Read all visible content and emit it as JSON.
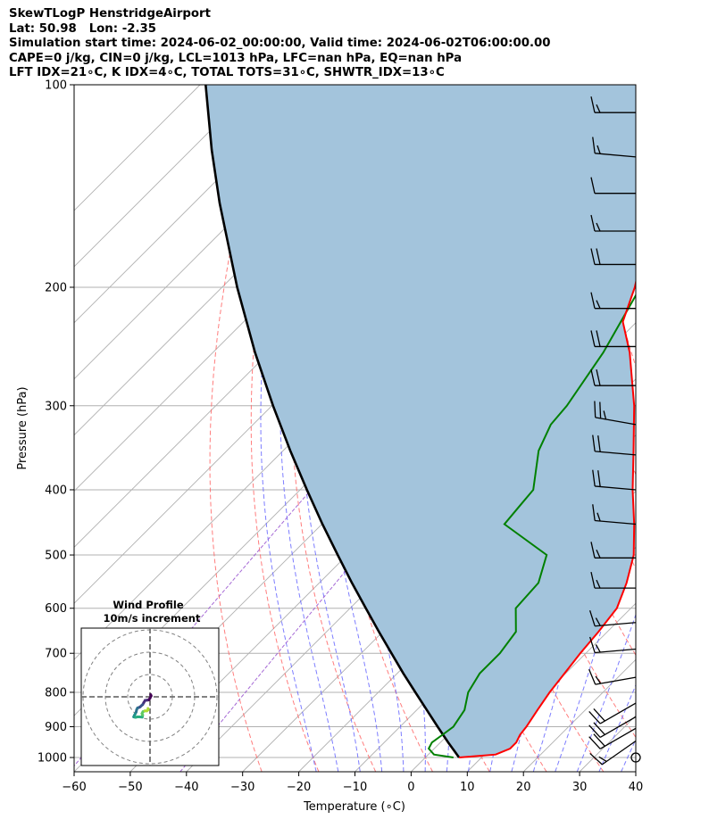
{
  "header": {
    "line1": "SkewTLogP HenstridgeAirport",
    "line2": "Lat: 50.98   Lon: -2.35",
    "line3": "Simulation start time: 2024-06-02_00:00:00, Valid time: 2024-06-02T06:00:00.00",
    "line4": "CAPE=0 j/kg, CIN=0 j/kg, LCL=1013 hPa, LFC=nan hPa, EQ=nan hPa",
    "line5": "LFT IDX=21∘C, K IDX=4∘C, TOTAL TOTS=31∘C, SHWTR_IDX=13∘C"
  },
  "chart_data": {
    "type": "line",
    "subtype": "skew-T log-P diagram",
    "xlabel": "Temperature (∘C)",
    "ylabel": "Pressure (hPa)",
    "xlim": [
      -60,
      40
    ],
    "ylim": [
      1050,
      100
    ],
    "y_scale": "log",
    "x_ticks": [
      "−60",
      "−50",
      "−40",
      "−30",
      "−20",
      "−10",
      "0",
      "10",
      "20",
      "30",
      "40"
    ],
    "y_ticks": [
      "100",
      "200",
      "300",
      "400",
      "500",
      "600",
      "700",
      "800",
      "900",
      "1000"
    ],
    "grid": true,
    "colors": {
      "temperature": "#ff0000",
      "dewpoint": "#008000",
      "parcel": "#000000",
      "shading": "#a3c4dc",
      "dry_adiabats": "#ff6666",
      "moist_adiabats": "#6666ff",
      "mixing_ratio": "#9b59d0",
      "isotherms": "#b0b0b0"
    },
    "series": [
      {
        "key": "temperature",
        "points": [
          [
            1000,
            6
          ],
          [
            990,
            12
          ],
          [
            970,
            13.5
          ],
          [
            950,
            13.5
          ],
          [
            925,
            12.8
          ],
          [
            900,
            12.5
          ],
          [
            850,
            11.5
          ],
          [
            800,
            10.5
          ],
          [
            750,
            9.8
          ],
          [
            700,
            9
          ],
          [
            650,
            8.4
          ],
          [
            600,
            7.5
          ],
          [
            550,
            4.7
          ],
          [
            500,
            1
          ],
          [
            450,
            -4.4
          ],
          [
            400,
            -10.8
          ],
          [
            350,
            -17.6
          ],
          [
            300,
            -25.5
          ],
          [
            250,
            -35.8
          ],
          [
            225,
            -42.5
          ],
          [
            200,
            -46.5
          ],
          [
            175,
            -51.9
          ],
          [
            150,
            -58
          ],
          [
            125,
            -65
          ],
          [
            110,
            -70.5
          ],
          [
            100,
            -72.5
          ]
        ]
      },
      {
        "key": "dewpoint",
        "points": [
          [
            1000,
            5
          ],
          [
            990,
            1
          ],
          [
            970,
            -1
          ],
          [
            950,
            -1.5
          ],
          [
            925,
            -1
          ],
          [
            900,
            -0.5
          ],
          [
            850,
            -1.5
          ],
          [
            800,
            -4
          ],
          [
            750,
            -5.3
          ],
          [
            700,
            -5.3
          ],
          [
            650,
            -6.3
          ],
          [
            600,
            -10.5
          ],
          [
            550,
            -11
          ],
          [
            500,
            -14.5
          ],
          [
            450,
            -27.5
          ],
          [
            425,
            -28
          ],
          [
            400,
            -28.5
          ],
          [
            350,
            -34.5
          ],
          [
            320,
            -37
          ],
          [
            300,
            -37.5
          ],
          [
            250,
            -40.5
          ],
          [
            200,
            -45.5
          ],
          [
            175,
            -50.5
          ],
          [
            150,
            -51.5
          ],
          [
            130,
            -59
          ],
          [
            110,
            -62
          ],
          [
            100,
            -64.5
          ]
        ]
      },
      {
        "key": "parcel",
        "points": [
          [
            1000,
            6
          ],
          [
            950,
            1.4
          ],
          [
            900,
            -3.3
          ],
          [
            850,
            -8.2
          ],
          [
            800,
            -13.4
          ],
          [
            750,
            -18.9
          ],
          [
            700,
            -24.6
          ],
          [
            650,
            -30.7
          ],
          [
            600,
            -37.2
          ],
          [
            550,
            -44.2
          ],
          [
            500,
            -51.7
          ],
          [
            450,
            -59.9
          ],
          [
            400,
            -68.8
          ],
          [
            350,
            -78.7
          ],
          [
            300,
            -89.8
          ],
          [
            250,
            -102.5
          ],
          [
            200,
            -117.3
          ],
          [
            150,
            -135.4
          ],
          [
            125,
            -146.3
          ],
          [
            100,
            -159
          ]
        ]
      }
    ],
    "wind_barbs": [
      {
        "p": 1000,
        "calm": true
      },
      {
        "p": 945,
        "dir": 235,
        "kt": 15
      },
      {
        "p": 905,
        "dir": 240,
        "kt": 20
      },
      {
        "p": 870,
        "dir": 240,
        "kt": 20
      },
      {
        "p": 830,
        "dir": 240,
        "kt": 20
      },
      {
        "p": 760,
        "dir": 260,
        "kt": 15
      },
      {
        "p": 690,
        "dir": 265,
        "kt": 15
      },
      {
        "p": 630,
        "dir": 265,
        "kt": 15
      },
      {
        "p": 560,
        "dir": 270,
        "kt": 15
      },
      {
        "p": 505,
        "dir": 270,
        "kt": 15
      },
      {
        "p": 450,
        "dir": 275,
        "kt": 15
      },
      {
        "p": 400,
        "dir": 275,
        "kt": 20
      },
      {
        "p": 355,
        "dir": 275,
        "kt": 20
      },
      {
        "p": 320,
        "dir": 280,
        "kt": 25
      },
      {
        "p": 280,
        "dir": 270,
        "kt": 20
      },
      {
        "p": 245,
        "dir": 270,
        "kt": 20
      },
      {
        "p": 215,
        "dir": 270,
        "kt": 15
      },
      {
        "p": 185,
        "dir": 270,
        "kt": 20
      },
      {
        "p": 165,
        "dir": 270,
        "kt": 15
      },
      {
        "p": 145,
        "dir": 270,
        "kt": 10
      },
      {
        "p": 128,
        "dir": 275,
        "kt": 15
      },
      {
        "p": 110,
        "dir": 270,
        "kt": 15
      }
    ],
    "wind_profile": {
      "title": "Wind Profile",
      "subtitle": "10m/s increment",
      "hodograph_uv": [
        [
          0.3,
          1.0
        ],
        [
          0.5,
          0.4
        ],
        [
          -0.1,
          -0.8
        ],
        [
          -0.6,
          -1.4
        ],
        [
          -1.3,
          -1.5
        ],
        [
          -2.2,
          -1.6
        ],
        [
          -2.8,
          -2.6
        ],
        [
          -3.3,
          -3.5
        ],
        [
          -3.9,
          -4.0
        ],
        [
          -4.4,
          -4.5
        ],
        [
          -5.0,
          -4.8
        ],
        [
          -5.6,
          -5.0
        ],
        [
          -6.0,
          -5.8
        ],
        [
          -6.2,
          -6.8
        ],
        [
          -6.6,
          -7.6
        ],
        [
          -7.0,
          -8.3
        ],
        [
          -7.3,
          -9.0
        ],
        [
          -6.5,
          -9.2
        ],
        [
          -5.7,
          -9.0
        ],
        [
          -4.7,
          -9.0
        ],
        [
          -3.5,
          -9.1
        ],
        [
          -3.3,
          -8.2
        ],
        [
          -3.6,
          -7.5
        ],
        [
          -3.2,
          -6.7
        ],
        [
          -2.3,
          -6.3
        ],
        [
          -1.4,
          -6.3
        ],
        [
          -0.8,
          -5.8
        ],
        [
          -0.9,
          -5.2
        ]
      ]
    }
  }
}
